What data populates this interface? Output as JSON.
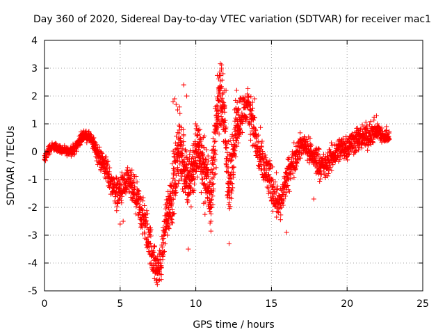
{
  "chart_data": {
    "type": "scatter",
    "title": "Day 360 of 2020, Sidereal Day-to-day VTEC variation (SDTVAR) for receiver mac1",
    "xlabel": "GPS time / hours",
    "ylabel": "SDTVAR / TECUs",
    "xlim": [
      0,
      25
    ],
    "ylim": [
      -5,
      4
    ],
    "xticks": [
      "0",
      "5",
      "10",
      "15",
      "20",
      "25"
    ],
    "yticks": [
      "4",
      "3",
      "2",
      "1",
      "0",
      "-1",
      "-2",
      "-3",
      "-4",
      "-5"
    ],
    "grid": true,
    "marker": "+",
    "color": "#ff0000",
    "series": [
      {
        "name": "mac1",
        "trend": {
          "x": [
            0.0,
            0.3,
            0.6,
            1.0,
            1.5,
            2.0,
            2.3,
            2.6,
            3.0,
            3.3,
            3.6,
            4.0,
            4.4,
            4.8,
            5.2,
            5.6,
            6.0,
            6.4,
            6.8,
            7.1,
            7.4,
            7.7,
            8.0,
            8.3,
            8.6,
            8.9,
            9.2,
            9.5,
            9.8,
            10.2,
            10.6,
            11.0,
            11.3,
            11.6,
            11.9,
            12.2,
            12.6,
            13.0,
            13.4,
            13.7,
            14.0,
            14.4,
            14.8,
            15.2,
            15.6,
            16.0,
            16.4,
            16.8,
            17.2,
            17.6,
            18.0,
            18.5,
            19.0,
            19.5,
            20.0,
            20.5,
            21.0,
            21.5,
            22.0,
            22.4,
            22.8
          ],
          "y": [
            -0.3,
            0.1,
            0.2,
            0.1,
            0.0,
            0.1,
            0.4,
            0.6,
            0.5,
            0.2,
            -0.2,
            -0.5,
            -1.1,
            -1.5,
            -1.3,
            -1.1,
            -1.6,
            -2.2,
            -2.9,
            -3.6,
            -4.3,
            -4.0,
            -2.5,
            -1.8,
            -1.0,
            0.2,
            -0.3,
            -1.2,
            -0.6,
            0.2,
            -0.8,
            -1.5,
            0.5,
            2.3,
            1.0,
            -1.5,
            0.8,
            1.4,
            1.6,
            1.3,
            0.2,
            -0.5,
            -0.9,
            -1.5,
            -1.9,
            -1.0,
            -0.4,
            0.1,
            0.3,
            -0.1,
            -0.3,
            -0.6,
            -0.2,
            0.1,
            0.2,
            0.4,
            0.5,
            0.6,
            0.8,
            0.5,
            0.6
          ],
          "spread": [
            0.2,
            0.2,
            0.15,
            0.15,
            0.15,
            0.2,
            0.2,
            0.2,
            0.2,
            0.3,
            0.4,
            0.5,
            0.5,
            0.6,
            0.6,
            0.6,
            0.7,
            0.8,
            0.8,
            0.8,
            0.6,
            0.7,
            0.9,
            1.0,
            1.2,
            1.3,
            1.3,
            1.2,
            1.2,
            1.1,
            1.2,
            1.3,
            1.3,
            1.2,
            1.3,
            1.5,
            1.2,
            0.8,
            0.7,
            0.8,
            0.9,
            0.9,
            0.8,
            0.8,
            0.7,
            0.6,
            0.6,
            0.5,
            0.4,
            0.5,
            0.6,
            0.5,
            0.5,
            0.5,
            0.5,
            0.5,
            0.5,
            0.5,
            0.4,
            0.3,
            0.2
          ]
        },
        "extra_points": [
          [
            9.2,
            2.4
          ],
          [
            9.4,
            2.0
          ],
          [
            8.5,
            1.8
          ],
          [
            8.6,
            1.9
          ],
          [
            8.7,
            1.7
          ],
          [
            11.7,
            3.0
          ],
          [
            11.8,
            2.8
          ],
          [
            11.5,
            2.3
          ],
          [
            12.0,
            2.2
          ],
          [
            9.5,
            -3.5
          ],
          [
            7.4,
            -4.7
          ],
          [
            7.6,
            -4.6
          ],
          [
            13.9,
            1.9
          ],
          [
            12.2,
            -3.3
          ],
          [
            5.0,
            -2.6
          ],
          [
            5.2,
            -2.5
          ],
          [
            17.8,
            -1.7
          ],
          [
            16.0,
            -2.9
          ],
          [
            22.6,
            0.9
          ],
          [
            2.6,
            0.7
          ],
          [
            8.8,
            1.5
          ],
          [
            10.0,
            1.0
          ],
          [
            11.0,
            -2.5
          ]
        ]
      }
    ]
  }
}
